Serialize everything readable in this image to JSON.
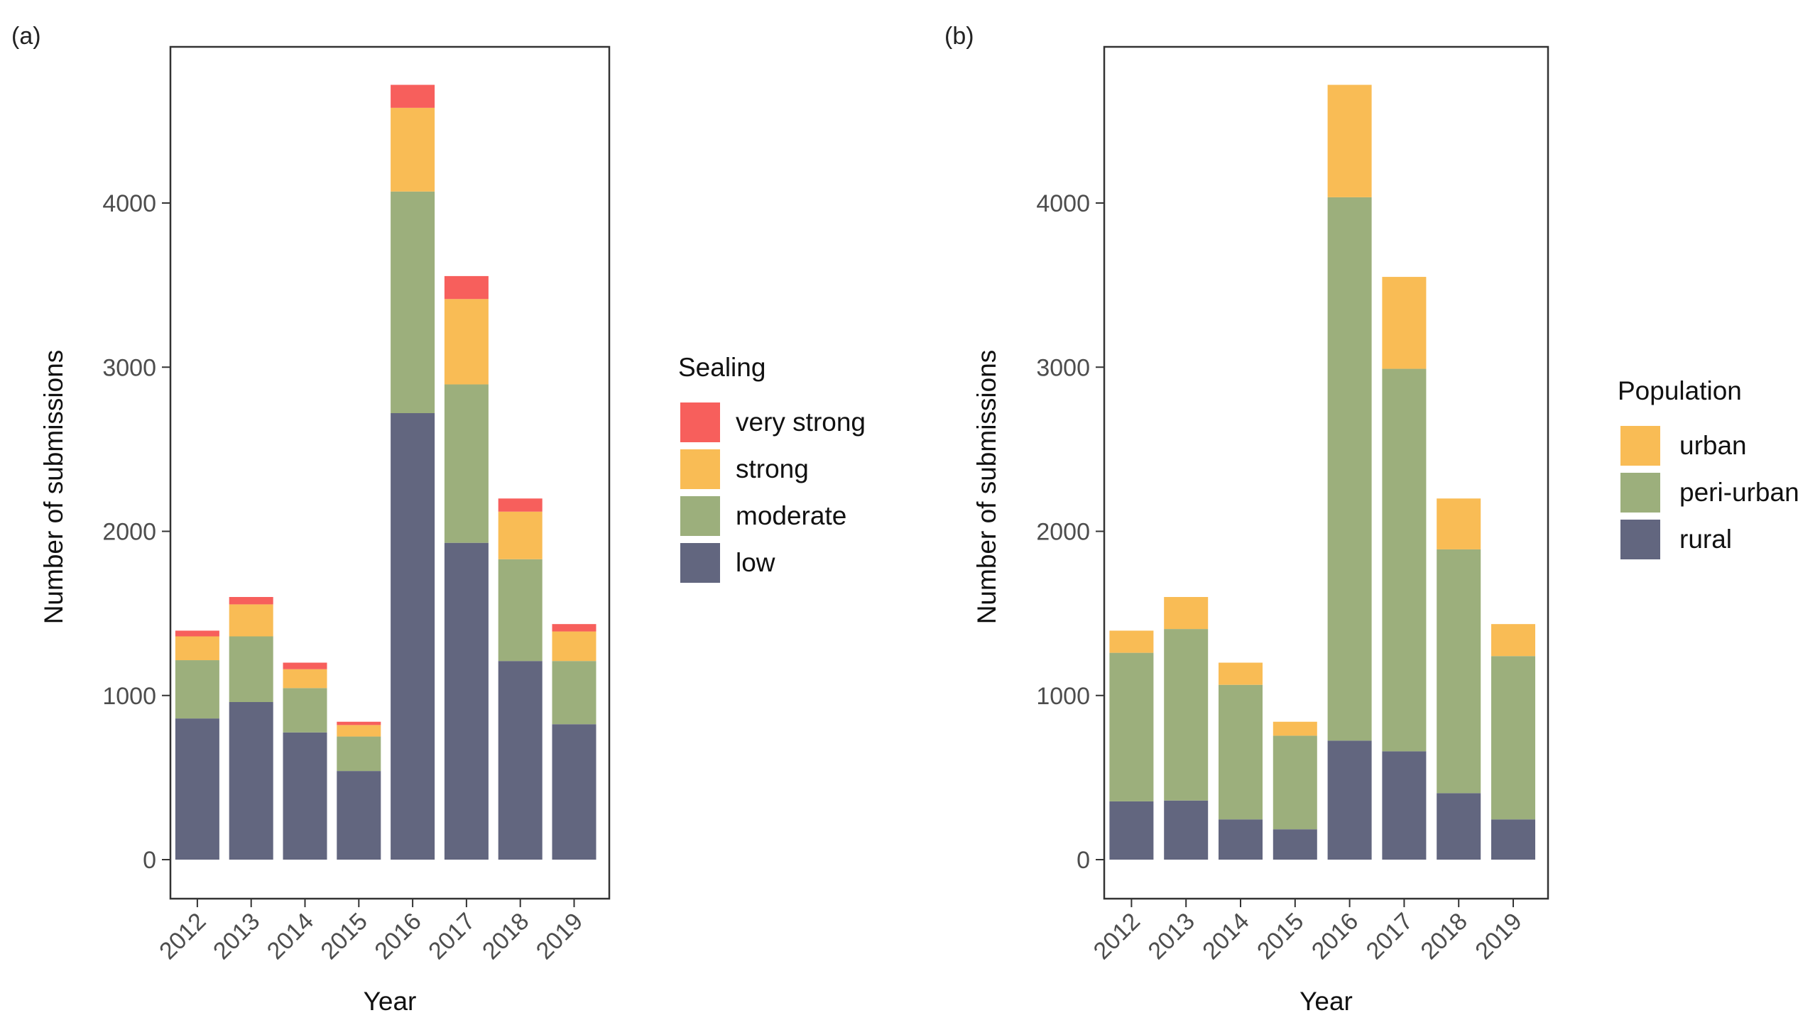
{
  "chart_data": [
    {
      "type": "bar",
      "stacked": true,
      "panel_label": "(a)",
      "xlabel": "Year",
      "ylabel": "Number of submissions",
      "ylim": [
        0,
        4750
      ],
      "yticks": [
        0,
        1000,
        2000,
        3000,
        4000
      ],
      "categories": [
        "2012",
        "2013",
        "2014",
        "2015",
        "2016",
        "2017",
        "2018",
        "2019"
      ],
      "legend_title": "Sealing",
      "legend_position": "right",
      "series": [
        {
          "name": "low",
          "color": "#62667f",
          "values": [
            860,
            960,
            775,
            540,
            2720,
            1930,
            1210,
            825
          ]
        },
        {
          "name": "moderate",
          "color": "#9caf7c",
          "values": [
            355,
            400,
            270,
            210,
            1350,
            965,
            620,
            385
          ]
        },
        {
          "name": "strong",
          "color": "#f9bc55",
          "values": [
            145,
            195,
            115,
            70,
            510,
            520,
            290,
            180
          ]
        },
        {
          "name": "very strong",
          "color": "#f75f5c",
          "values": [
            35,
            45,
            40,
            20,
            140,
            140,
            80,
            45
          ]
        }
      ]
    },
    {
      "type": "bar",
      "stacked": true,
      "panel_label": "(b)",
      "xlabel": "Year",
      "ylabel": "Number of submissions",
      "ylim": [
        0,
        4750
      ],
      "yticks": [
        0,
        1000,
        2000,
        3000,
        4000
      ],
      "categories": [
        "2012",
        "2013",
        "2014",
        "2015",
        "2016",
        "2017",
        "2018",
        "2019"
      ],
      "legend_title": "Population",
      "legend_position": "right",
      "series": [
        {
          "name": "rural",
          "color": "#62667f",
          "values": [
            355,
            360,
            245,
            185,
            725,
            660,
            405,
            245
          ]
        },
        {
          "name": "peri-urban",
          "color": "#9caf7c",
          "values": [
            905,
            1045,
            820,
            570,
            3310,
            2330,
            1485,
            995
          ]
        },
        {
          "name": "urban",
          "color": "#f9bc55",
          "values": [
            135,
            195,
            135,
            85,
            685,
            560,
            310,
            195
          ]
        }
      ]
    }
  ]
}
